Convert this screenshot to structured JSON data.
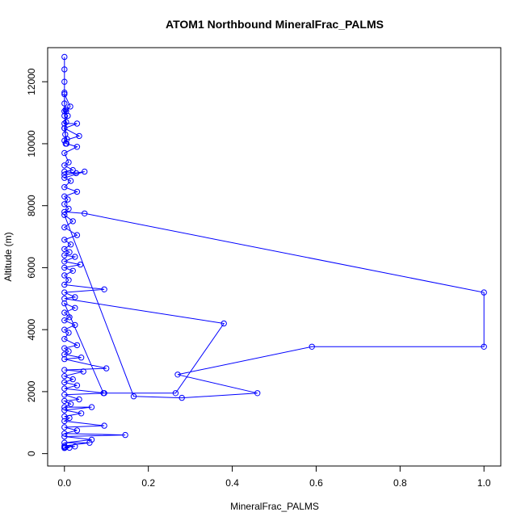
{
  "chart_data": {
    "type": "line",
    "title": "ATOM1 Northbound MineralFrac_PALMS",
    "xlabel": "MineralFrac_PALMS",
    "ylabel": "Altitude (m)",
    "xlim": [
      -0.04,
      1.04
    ],
    "ylim": [
      -400,
      13100
    ],
    "xticks": [
      0,
      0.2,
      0.4,
      0.6,
      0.8,
      1.0
    ],
    "xtick_labels": [
      "0.0",
      "0.2",
      "0.4",
      "0.6",
      "0.8",
      "1.0"
    ],
    "yticks": [
      0,
      2000,
      4000,
      6000,
      8000,
      10000,
      12000
    ],
    "ytick_labels": [
      "0",
      "2000",
      "4000",
      "6000",
      "8000",
      "10000",
      "12000"
    ],
    "series_color": "#0000ff",
    "marker": "open-circle",
    "grid": false,
    "legend": "none",
    "series": [
      {
        "x": [
          0.0,
          0.0,
          0.0,
          0.0,
          0.0,
          0.003,
          0.0,
          0.004,
          0.0,
          0.002,
          0.006,
          0.003,
          0.0,
          0.014,
          0.004,
          0.0,
          0.008,
          0.0,
          0.03,
          0.0,
          0.035,
          0.0,
          0.005,
          0.03,
          0.0,
          0.01,
          0.0,
          0.02,
          0.0,
          0.028,
          0.0,
          0.048,
          0.0,
          0.015,
          0.0,
          0.03,
          0.0,
          0.008,
          0.0,
          0.01,
          0.0,
          0.048,
          1.0,
          1.0,
          0.59,
          0.27,
          0.46,
          0.28,
          0.165,
          0.0,
          0.02,
          0.0,
          0.03,
          0.0,
          0.015,
          0.0,
          0.012,
          0.0,
          0.025,
          0.0,
          0.038,
          0.0,
          0.02,
          0.0,
          0.01,
          0.0,
          0.095,
          0.0,
          0.025,
          0.0,
          0.38,
          0.265,
          0.093,
          0.0,
          0.025,
          0.0,
          0.012,
          0.0,
          0.025,
          0.0,
          0.01,
          0.0,
          0.03,
          0.0,
          0.01,
          0.0,
          0.04,
          0.0,
          0.1,
          0.0,
          0.045,
          0.0,
          0.02,
          0.0,
          0.03,
          0.0,
          0.095,
          0.0,
          0.035,
          0.0,
          0.015,
          0.0,
          0.065,
          0.0,
          0.04,
          0.0,
          0.012,
          0.0,
          0.095,
          0.0,
          0.03,
          0.0,
          0.145,
          0.0,
          0.065,
          0.0,
          0.06,
          0.0,
          0.025,
          0.0,
          0.002,
          0.012,
          0.0
        ],
        "y": [
          12800,
          12400,
          12000,
          11650,
          11300,
          11100,
          10900,
          10700,
          10500,
          10300,
          10150,
          10000,
          11600,
          11200,
          11050,
          11050,
          10900,
          10650,
          10650,
          10500,
          10250,
          10100,
          10000,
          9900,
          9700,
          9400,
          9300,
          9150,
          9100,
          9050,
          9000,
          9100,
          8900,
          8800,
          8600,
          8450,
          8300,
          8200,
          8050,
          7900,
          7800,
          7750,
          5200,
          3450,
          3450,
          2550,
          1950,
          1800,
          1850,
          7700,
          7500,
          7300,
          7050,
          6900,
          6750,
          6600,
          6500,
          6400,
          6350,
          6200,
          6100,
          6000,
          5900,
          5750,
          5600,
          5450,
          5300,
          5200,
          5050,
          5000,
          4200,
          1950,
          1950,
          4850,
          4700,
          4550,
          4400,
          4300,
          4150,
          4000,
          3900,
          3700,
          3500,
          3400,
          3300,
          3200,
          3100,
          3050,
          2750,
          2700,
          2650,
          2500,
          2400,
          2300,
          2200,
          2100,
          1950,
          1900,
          1750,
          1700,
          1600,
          1500,
          1500,
          1400,
          1300,
          1200,
          1150,
          1050,
          900,
          850,
          750,
          650,
          600,
          550,
          450,
          350,
          350,
          250,
          230,
          210,
          200,
          190,
          180
        ]
      }
    ]
  }
}
